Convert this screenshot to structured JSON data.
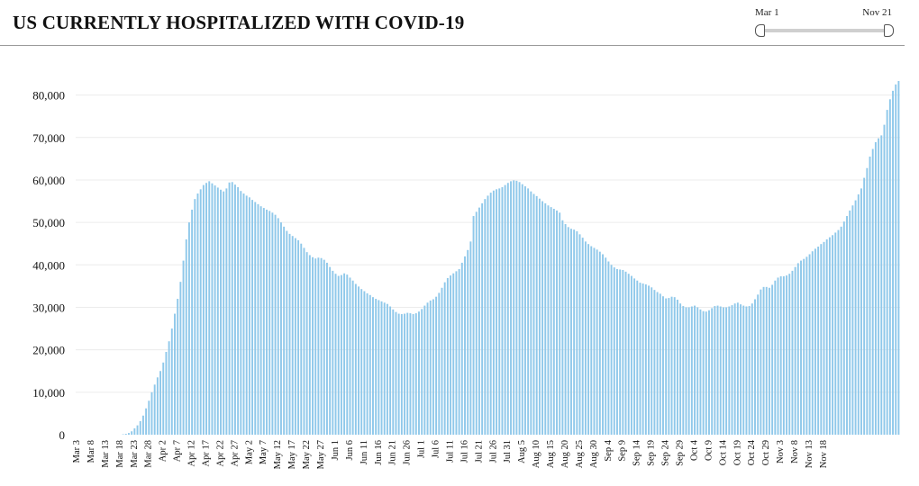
{
  "header": {
    "title": "US CURRENTLY HOSPITALIZED WITH COVID-19"
  },
  "slider": {
    "start_label": "Mar 1",
    "end_label": "Nov 21"
  },
  "colors": {
    "bar": "#8fc8ea",
    "grid": "#ececec"
  },
  "chart_data": {
    "type": "bar",
    "title": "US CURRENTLY HOSPITALIZED WITH COVID-19",
    "xlabel": "",
    "ylabel": "",
    "ylim": [
      0,
      85000
    ],
    "yticks": [
      0,
      10000,
      20000,
      30000,
      40000,
      50000,
      60000,
      70000,
      80000
    ],
    "ytick_labels": [
      "0",
      "10,000",
      "20,000",
      "30,000",
      "40,000",
      "50,000",
      "60,000",
      "70,000",
      "80,000"
    ],
    "xtick_labels": [
      "Mar 3",
      "Mar 8",
      "Mar 13",
      "Mar 18",
      "Mar 23",
      "Mar 28",
      "Apr 2",
      "Apr 7",
      "Apr 12",
      "Apr 17",
      "Apr 22",
      "Apr 27",
      "May 2",
      "May 7",
      "May 12",
      "May 17",
      "May 22",
      "May 27",
      "Jun 1",
      "Jun 6",
      "Jun 11",
      "Jun 16",
      "Jun 21",
      "Jun 26",
      "Jul 1",
      "Jul 6",
      "Jul 11",
      "Jul 16",
      "Jul 21",
      "Jul 26",
      "Jul 31",
      "Aug 5",
      "Aug 10",
      "Aug 15",
      "Aug 20",
      "Aug 25",
      "Aug 30",
      "Sep 4",
      "Sep 9",
      "Sep 14",
      "Sep 19",
      "Sep 24",
      "Sep 29",
      "Oct 4",
      "Oct 9",
      "Oct 14",
      "Oct 19",
      "Oct 24",
      "Oct 29",
      "Nov 3",
      "Nov 8",
      "Nov 13",
      "Nov 18"
    ],
    "grid": true,
    "legend": "none",
    "series": [
      {
        "start_date": "Mar 3",
        "end_date": "Nov 21",
        "values": [
          0,
          0,
          0,
          0,
          0,
          0,
          0,
          0,
          0,
          0,
          0,
          0,
          0,
          0,
          0,
          0,
          100,
          200,
          400,
          800,
          1500,
          2200,
          3200,
          4500,
          6200,
          8000,
          10000,
          11800,
          13500,
          15000,
          17000,
          19500,
          22000,
          25000,
          28500,
          32000,
          36000,
          41000,
          46000,
          50000,
          53000,
          55500,
          56800,
          57800,
          58800,
          59300,
          59700,
          59200,
          58700,
          58200,
          57700,
          57300,
          58000,
          59400,
          59500,
          58900,
          58300,
          57400,
          56800,
          56300,
          55900,
          55300,
          54800,
          54300,
          53800,
          53400,
          53000,
          52700,
          52300,
          51800,
          51000,
          50000,
          49000,
          48000,
          47300,
          46800,
          46300,
          45800,
          45000,
          44000,
          43000,
          42300,
          41800,
          41500,
          41700,
          41600,
          41200,
          40500,
          39500,
          38600,
          37900,
          37400,
          37600,
          38000,
          37700,
          37000,
          36300,
          35500,
          34900,
          34300,
          33800,
          33300,
          32900,
          32400,
          32000,
          31700,
          31400,
          31100,
          30800,
          30200,
          29500,
          28900,
          28500,
          28400,
          28500,
          28700,
          28600,
          28400,
          28600,
          29000,
          29600,
          30400,
          31100,
          31600,
          31900,
          32500,
          33400,
          34600,
          35900,
          36900,
          37500,
          38000,
          38500,
          39000,
          40500,
          42000,
          43500,
          45500,
          51500,
          52500,
          53500,
          54500,
          55500,
          56300,
          57000,
          57500,
          57800,
          58000,
          58300,
          58800,
          59300,
          59700,
          59900,
          59800,
          59500,
          59000,
          58500,
          58000,
          57300,
          56700,
          56200,
          55600,
          55000,
          54500,
          54000,
          53600,
          53200,
          52800,
          52300,
          50500,
          49600,
          48900,
          48500,
          48300,
          47900,
          47200,
          46400,
          45500,
          44900,
          44400,
          44000,
          43600,
          43100,
          42500,
          41700,
          40800,
          40000,
          39400,
          39000,
          38900,
          38800,
          38400,
          37900,
          37400,
          36800,
          36300,
          35800,
          35600,
          35400,
          35100,
          34700,
          34100,
          33600,
          33200,
          32600,
          32100,
          32200,
          32500,
          32400,
          31800,
          30900,
          30300,
          30000,
          30000,
          30200,
          30400,
          30000,
          29500,
          29100,
          29000,
          29300,
          29800,
          30300,
          30400,
          30200,
          30000,
          30000,
          30200,
          30500,
          30900,
          31100,
          30700,
          30400,
          30200,
          30300,
          30900,
          31900,
          33000,
          34200,
          34800,
          34800,
          34600,
          35300,
          36300,
          37000,
          37300,
          37300,
          37500,
          37900,
          38600,
          39500,
          40400,
          41000,
          41400,
          41900,
          42500,
          43200,
          43800,
          44300,
          44900,
          45400,
          46000,
          46500,
          47000,
          47600,
          48200,
          49000,
          50200,
          51500,
          52800,
          54000,
          55200,
          56600,
          58000,
          60500,
          62800,
          65500,
          67300,
          68900,
          69800,
          70500,
          73000,
          76500,
          79000,
          81000,
          82500,
          83300
        ]
      }
    ]
  }
}
